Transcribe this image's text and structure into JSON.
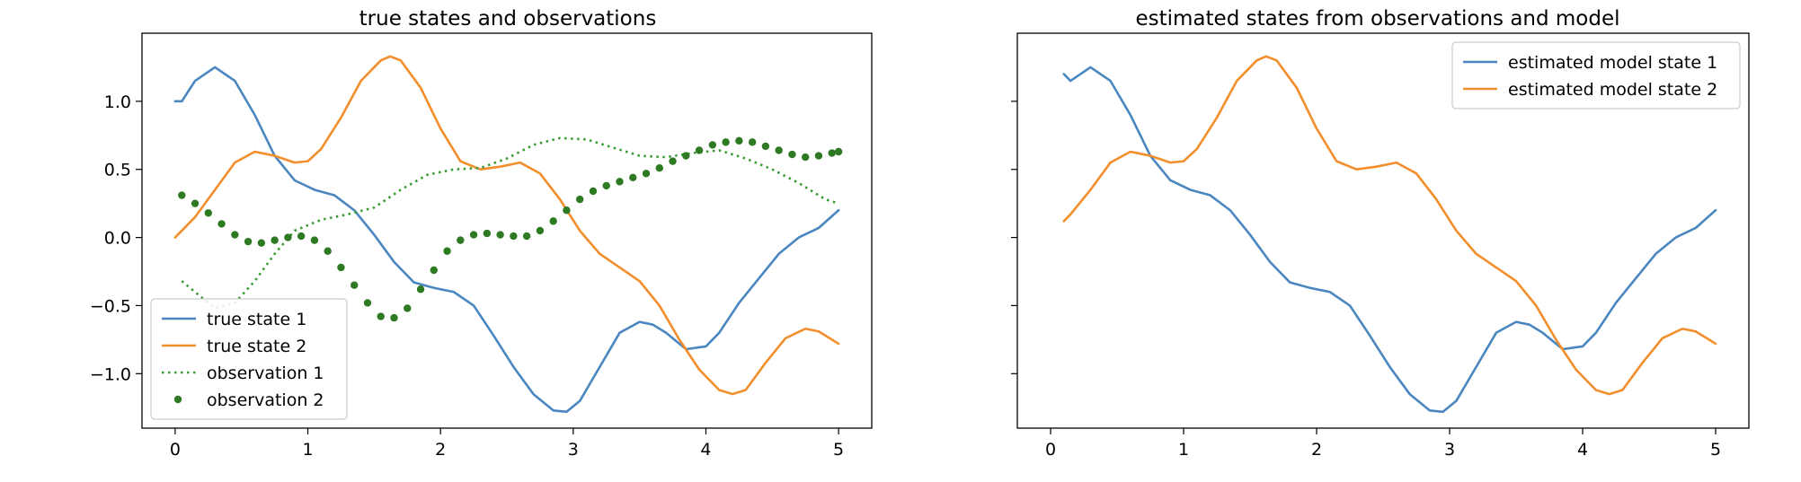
{
  "chart_data": [
    {
      "type": "line",
      "title": "true states and observations",
      "xlabel": "",
      "ylabel": "",
      "xlim": [
        -0.25,
        5.25
      ],
      "ylim": [
        -1.4,
        1.5
      ],
      "xticks": [
        0,
        1,
        2,
        3,
        4,
        5
      ],
      "yticks": [
        -1.0,
        -0.5,
        0.0,
        0.5,
        1.0
      ],
      "xtick_labels": [
        "0",
        "1",
        "2",
        "3",
        "4",
        "5"
      ],
      "ytick_labels": [
        "−1.0",
        "−0.5",
        "0.0",
        "0.5",
        "1.0"
      ],
      "legend_position": "lower-left",
      "grid": false,
      "series": [
        {
          "name": "true state 1",
          "style": "solid",
          "color": "#4a86bf",
          "x": [
            0.0,
            0.05,
            0.15,
            0.3,
            0.45,
            0.6,
            0.75,
            0.9,
            1.05,
            1.2,
            1.35,
            1.5,
            1.65,
            1.8,
            1.95,
            2.1,
            2.25,
            2.4,
            2.55,
            2.7,
            2.85,
            2.95,
            3.05,
            3.2,
            3.35,
            3.5,
            3.6,
            3.7,
            3.85,
            4.0,
            4.1,
            4.25,
            4.4,
            4.55,
            4.7,
            4.85,
            5.0
          ],
          "y": [
            1.0,
            1.0,
            1.15,
            1.25,
            1.15,
            0.9,
            0.6,
            0.42,
            0.35,
            0.31,
            0.2,
            0.02,
            -0.18,
            -0.33,
            -0.37,
            -0.4,
            -0.5,
            -0.72,
            -0.95,
            -1.15,
            -1.27,
            -1.28,
            -1.2,
            -0.95,
            -0.7,
            -0.62,
            -0.64,
            -0.7,
            -0.82,
            -0.8,
            -0.7,
            -0.48,
            -0.3,
            -0.12,
            0.0,
            0.07,
            0.2
          ]
        },
        {
          "name": "true state 2",
          "style": "solid",
          "color": "#f28e2b",
          "x": [
            0.0,
            0.15,
            0.3,
            0.45,
            0.6,
            0.75,
            0.9,
            1.0,
            1.1,
            1.25,
            1.4,
            1.55,
            1.62,
            1.7,
            1.85,
            2.0,
            2.15,
            2.3,
            2.45,
            2.6,
            2.75,
            2.9,
            3.05,
            3.2,
            3.35,
            3.5,
            3.65,
            3.8,
            3.95,
            4.1,
            4.2,
            4.3,
            4.45,
            4.6,
            4.75,
            4.85,
            5.0
          ],
          "y": [
            0.0,
            0.15,
            0.35,
            0.55,
            0.63,
            0.6,
            0.55,
            0.56,
            0.65,
            0.88,
            1.15,
            1.3,
            1.33,
            1.3,
            1.1,
            0.8,
            0.56,
            0.5,
            0.52,
            0.55,
            0.47,
            0.28,
            0.05,
            -0.12,
            -0.22,
            -0.32,
            -0.5,
            -0.75,
            -0.97,
            -1.12,
            -1.15,
            -1.12,
            -0.92,
            -0.74,
            -0.67,
            -0.69,
            -0.78
          ]
        },
        {
          "name": "observation 1",
          "style": "dotted",
          "color": "#3a9b35",
          "x": [
            0.05,
            0.15,
            0.3,
            0.45,
            0.6,
            0.75,
            0.9,
            1.1,
            1.3,
            1.5,
            1.7,
            1.9,
            2.1,
            2.3,
            2.5,
            2.7,
            2.9,
            3.1,
            3.3,
            3.5,
            3.7,
            3.9,
            4.1,
            4.3,
            4.5,
            4.7,
            4.9,
            5.0
          ],
          "y": [
            -0.32,
            -0.4,
            -0.52,
            -0.48,
            -0.32,
            -0.12,
            0.05,
            0.13,
            0.17,
            0.22,
            0.35,
            0.46,
            0.5,
            0.51,
            0.58,
            0.68,
            0.73,
            0.72,
            0.66,
            0.6,
            0.59,
            0.62,
            0.64,
            0.58,
            0.5,
            0.4,
            0.28,
            0.25
          ]
        },
        {
          "name": "observation 2",
          "style": "dots",
          "color": "#2d7a23",
          "x": [
            0.05,
            0.15,
            0.25,
            0.35,
            0.45,
            0.55,
            0.65,
            0.75,
            0.85,
            0.95,
            1.05,
            1.15,
            1.25,
            1.35,
            1.45,
            1.55,
            1.65,
            1.75,
            1.85,
            1.95,
            2.05,
            2.15,
            2.25,
            2.35,
            2.45,
            2.55,
            2.65,
            2.75,
            2.85,
            2.95,
            3.05,
            3.15,
            3.25,
            3.35,
            3.45,
            3.55,
            3.65,
            3.75,
            3.85,
            3.95,
            4.05,
            4.15,
            4.25,
            4.35,
            4.45,
            4.55,
            4.65,
            4.75,
            4.85,
            4.95,
            5.0
          ],
          "y": [
            0.31,
            0.25,
            0.18,
            0.1,
            0.02,
            -0.03,
            -0.04,
            -0.02,
            0.0,
            0.01,
            -0.02,
            -0.1,
            -0.22,
            -0.35,
            -0.48,
            -0.58,
            -0.59,
            -0.52,
            -0.38,
            -0.24,
            -0.1,
            -0.02,
            0.02,
            0.03,
            0.02,
            0.01,
            0.01,
            0.05,
            0.12,
            0.2,
            0.28,
            0.34,
            0.38,
            0.41,
            0.44,
            0.47,
            0.51,
            0.56,
            0.6,
            0.64,
            0.68,
            0.7,
            0.71,
            0.7,
            0.67,
            0.64,
            0.61,
            0.59,
            0.6,
            0.62,
            0.63
          ]
        }
      ]
    },
    {
      "type": "line",
      "title": "estimated states from observations and model",
      "xlabel": "",
      "ylabel": "",
      "xlim": [
        -0.25,
        5.25
      ],
      "ylim": [
        -1.4,
        1.5
      ],
      "xticks": [
        0,
        1,
        2,
        3,
        4,
        5
      ],
      "xtick_labels": [
        "0",
        "1",
        "2",
        "3",
        "4",
        "5"
      ],
      "yticks": [
        -1.0,
        -0.5,
        0.0,
        0.5,
        1.0
      ],
      "ytick_labels": [],
      "legend_position": "top-right",
      "grid": false,
      "series": [
        {
          "name": "estimated model state 1",
          "style": "solid",
          "color": "#4a86bf",
          "x": [
            0.1,
            0.15,
            0.3,
            0.45,
            0.6,
            0.75,
            0.9,
            1.05,
            1.2,
            1.35,
            1.5,
            1.65,
            1.8,
            1.95,
            2.1,
            2.25,
            2.4,
            2.55,
            2.7,
            2.85,
            2.95,
            3.05,
            3.2,
            3.35,
            3.5,
            3.6,
            3.7,
            3.85,
            4.0,
            4.1,
            4.25,
            4.4,
            4.55,
            4.7,
            4.85,
            5.0
          ],
          "y": [
            1.2,
            1.15,
            1.25,
            1.15,
            0.9,
            0.6,
            0.42,
            0.35,
            0.31,
            0.2,
            0.02,
            -0.18,
            -0.33,
            -0.37,
            -0.4,
            -0.5,
            -0.72,
            -0.95,
            -1.15,
            -1.27,
            -1.28,
            -1.2,
            -0.95,
            -0.7,
            -0.62,
            -0.64,
            -0.7,
            -0.82,
            -0.8,
            -0.7,
            -0.48,
            -0.3,
            -0.12,
            0.0,
            0.07,
            0.2
          ]
        },
        {
          "name": "estimated model state 2",
          "style": "solid",
          "color": "#f28e2b",
          "x": [
            0.1,
            0.15,
            0.3,
            0.45,
            0.6,
            0.75,
            0.9,
            1.0,
            1.1,
            1.25,
            1.4,
            1.55,
            1.62,
            1.7,
            1.85,
            2.0,
            2.15,
            2.3,
            2.45,
            2.6,
            2.75,
            2.9,
            3.05,
            3.2,
            3.35,
            3.5,
            3.65,
            3.8,
            3.95,
            4.1,
            4.2,
            4.3,
            4.45,
            4.6,
            4.75,
            4.85,
            5.0
          ],
          "y": [
            0.12,
            0.17,
            0.35,
            0.55,
            0.63,
            0.6,
            0.55,
            0.56,
            0.65,
            0.88,
            1.15,
            1.3,
            1.33,
            1.3,
            1.1,
            0.8,
            0.56,
            0.5,
            0.52,
            0.55,
            0.47,
            0.28,
            0.05,
            -0.12,
            -0.22,
            -0.32,
            -0.5,
            -0.75,
            -0.97,
            -1.12,
            -1.15,
            -1.12,
            -0.92,
            -0.74,
            -0.67,
            -0.69,
            -0.78
          ]
        }
      ]
    }
  ]
}
